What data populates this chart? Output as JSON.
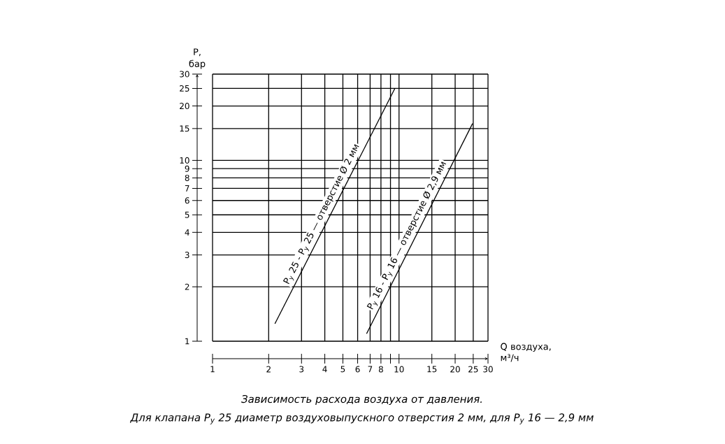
{
  "chart_data": {
    "type": "line",
    "title": "Зависимость расхода воздуха от давления.",
    "subtitle": "Для клапана P$_{у}$ 25 диаметр воздуховыпускного отверстия  2 мм,  для P$_{у}$ 16 — 2,9 мм",
    "xlabel": "Q воздуха, м³/ч",
    "ylabel": "P, бар",
    "log": "xy",
    "grid": true,
    "xlim": [
      1,
      30
    ],
    "ylim": [
      1,
      30
    ],
    "xticks": [
      1,
      2,
      3,
      4,
      5,
      6,
      7,
      8,
      {
        "value": 9,
        "label": null
      },
      10,
      15,
      20,
      25,
      30
    ],
    "yticks": [
      1,
      2,
      3,
      4,
      5,
      6,
      7,
      8,
      9,
      10,
      15,
      20,
      25,
      30
    ],
    "series": [
      {
        "color": "#000000",
        "x": [
          2.16,
          9.5
        ],
        "values": [
          1.25,
          25
        ]
      },
      {
        "color": "#000000",
        "x": [
          6.7,
          24.8
        ],
        "values": [
          1.1,
          16
        ]
      }
    ],
    "annotations": [
      "P$_{у}$ 25 - P$_{у}$ 25 — отверстие Ø 2 мм",
      "P$_{у}$ 16 - P$_{у}$ 16 — отверстие Ø 2,9 мм"
    ]
  }
}
